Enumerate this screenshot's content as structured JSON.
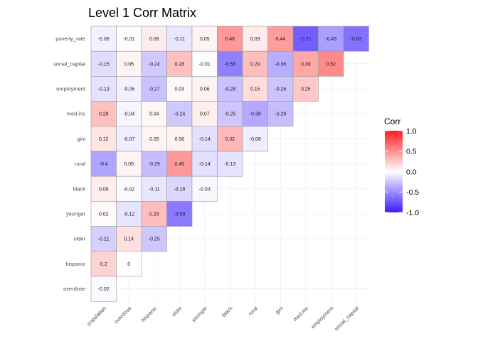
{
  "chart_data": {
    "type": "heatmap",
    "title": "Level 1 Corr Matrix",
    "xlabel": "",
    "ylabel": "",
    "x_categories": [
      "population",
      "overdose",
      "hispanic",
      "older",
      "younger",
      "black",
      "rural",
      "gini",
      "med.inc",
      "employment",
      "social_capital"
    ],
    "y_categories": [
      "poverty_rate",
      "social_capital",
      "employment",
      "med.inc",
      "gini",
      "rural",
      "black",
      "younger",
      "older",
      "hispanic",
      "overdose"
    ],
    "values": [
      [
        -0.06,
        -0.01,
        0.08,
        -0.11,
        0.05,
        0.46,
        0.09,
        0.44,
        -0.71,
        -0.43,
        -0.63
      ],
      [
        -0.15,
        0.05,
        -0.24,
        0.28,
        -0.01,
        -0.56,
        0.29,
        -0.36,
        0.39,
        0.52
      ],
      [
        -0.13,
        -0.06,
        -0.27,
        0.03,
        0.06,
        -0.28,
        0.15,
        -0.26,
        0.25
      ],
      [
        0.28,
        -0.04,
        0.04,
        -0.24,
        0.07,
        -0.25,
        -0.38,
        -0.29
      ],
      [
        0.12,
        -0.07,
        0.05,
        0.06,
        -0.14,
        0.32,
        -0.08
      ],
      [
        -0.4,
        0.05,
        -0.29,
        0.46,
        -0.14,
        -0.13
      ],
      [
        0.08,
        -0.02,
        -0.11,
        -0.18,
        -0.03
      ],
      [
        0.02,
        -0.12,
        0.29,
        -0.59
      ],
      [
        -0.21,
        0.14,
        -0.25
      ],
      [
        0.2,
        0
      ],
      [
        -0.02
      ]
    ],
    "value_range": [
      -1,
      1
    ],
    "grid": true,
    "legend": {
      "title": "Corr",
      "placement": "right",
      "ticks": [
        1.0,
        0.5,
        0.0,
        -0.5,
        -1.0
      ],
      "tick_labels": [
        "1.0",
        "0.5",
        "0.0",
        "-0.5",
        "-1.0"
      ],
      "colors": {
        "low": "#3a1dff",
        "mid": "#ffffff",
        "high": "#ff1e1e"
      }
    }
  }
}
